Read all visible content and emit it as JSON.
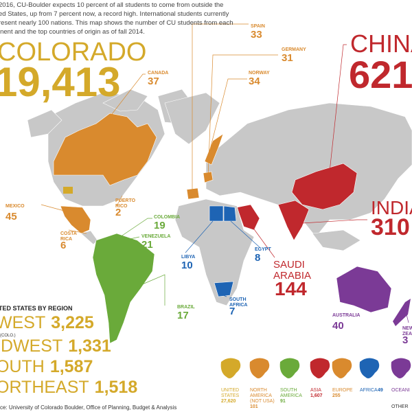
{
  "intro": [
    "2016, CU-Boulder expects 10 percent of all students to come from outside the",
    "ed States, up from 7 percent now, a record high. International students currently",
    "resent nearly 100 nations. This map shows the number of CU students from each",
    "inent and the top countries of origin as of fall 2014."
  ],
  "colorado": {
    "label": "COLORADO",
    "value": "19,413"
  },
  "china": {
    "label": "CHINA",
    "value": "621"
  },
  "india": {
    "label": "INDIA",
    "value": "310"
  },
  "saudi": {
    "label": [
      "SAUDI",
      "ARABIA"
    ],
    "value": "144"
  },
  "countries": [
    {
      "label": [
        "SPAIN"
      ],
      "value": "33"
    },
    {
      "label": [
        "GERMANY"
      ],
      "value": "31"
    },
    {
      "label": [
        "NORWAY"
      ],
      "value": "34"
    },
    {
      "label": [
        "CANADA"
      ],
      "value": "37"
    },
    {
      "label": [
        "MEXICO"
      ],
      "value": "45"
    },
    {
      "label": [
        "PUERTO",
        "RICO"
      ],
      "value": "2"
    },
    {
      "label": [
        "COSTA",
        "RICA"
      ],
      "value": "6"
    },
    {
      "label": [
        "COLOMBIA"
      ],
      "value": "19"
    },
    {
      "label": [
        "VENEZUELA"
      ],
      "value": "21"
    },
    {
      "label": [
        "LIBYA"
      ],
      "value": "10"
    },
    {
      "label": [
        "EGYPT"
      ],
      "value": "8"
    },
    {
      "label": [
        "SOUTH",
        "AFRICA"
      ],
      "value": "7"
    },
    {
      "label": [
        "BRAZIL"
      ],
      "value": "17"
    },
    {
      "label": [
        "AUSTRALIA"
      ],
      "value": "40"
    },
    {
      "label": [
        "NEW",
        "ZEA"
      ],
      "value": "3"
    }
  ],
  "regions": {
    "title": "TED STATES BY REGION",
    "items": [
      {
        "label": "WEST",
        "value": "3,225",
        "note": "(COLO.)"
      },
      {
        "label": "IDWEST",
        "value": "1,331"
      },
      {
        "label": "OUTH",
        "value": "1,587"
      },
      {
        "label": "ORTHEAST",
        "value": "1,518"
      }
    ]
  },
  "continents": [
    {
      "label": [
        "UNITED",
        "STATES"
      ],
      "value": "27,620"
    },
    {
      "label": [
        "NORTH",
        "AMERICA",
        "(NOT USA)"
      ],
      "value": "101"
    },
    {
      "label": [
        "SOUTH",
        "AMERICA"
      ],
      "value": "91"
    },
    {
      "label": [
        "ASIA"
      ],
      "value": "1,607"
    },
    {
      "label": [
        "EUROPE"
      ],
      "value": "255"
    },
    {
      "label": [
        "AFRICA"
      ],
      "value": "49"
    },
    {
      "label": [
        "OCEANI"
      ]
    },
    {
      "label": [
        "OTHER"
      ]
    }
  ],
  "source": "ce: University of Colorado Boulder, Office of Planning, Budget & Analysis"
}
